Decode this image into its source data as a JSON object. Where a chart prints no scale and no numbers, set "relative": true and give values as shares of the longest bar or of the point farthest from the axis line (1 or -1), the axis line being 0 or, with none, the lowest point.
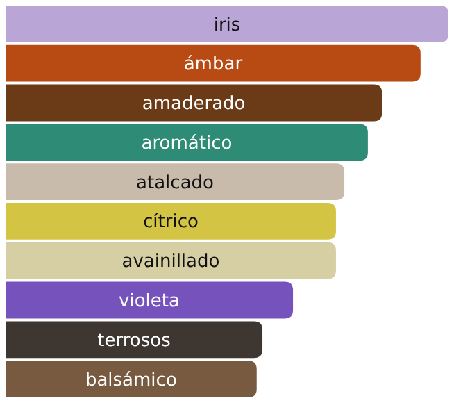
{
  "chart_data": {
    "type": "bar",
    "orientation": "horizontal",
    "relative": true,
    "categories": [
      "iris",
      "ámbar",
      "amaderado",
      "aromático",
      "atalcado",
      "cítrico",
      "avainillado",
      "violeta",
      "terrosos",
      "balsámico"
    ],
    "values": [
      1,
      0.937,
      0.85,
      0.818,
      0.765,
      0.746,
      0.746,
      0.649,
      0.58,
      0.567
    ],
    "colors": [
      "#b9a6d6",
      "#b84a13",
      "#6b3a16",
      "#2e8b75",
      "#c9bbac",
      "#d4c444",
      "#d6cfa3",
      "#7652bd",
      "#3e3630",
      "#775a3f"
    ]
  }
}
